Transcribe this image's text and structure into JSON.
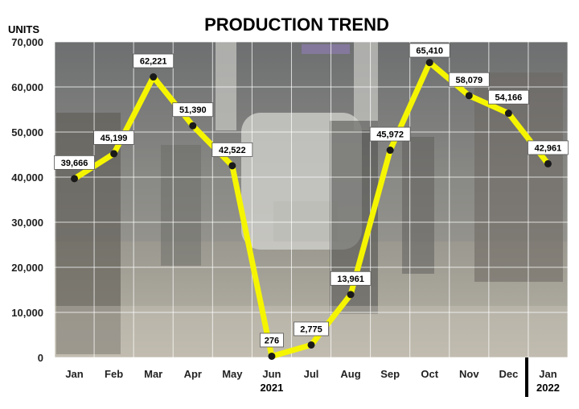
{
  "chart_data": {
    "type": "line",
    "title": "PRODUCTION TREND",
    "ylabel": "UNITS",
    "xlabel": "",
    "categories": [
      "Jan",
      "Feb",
      "Mar",
      "Apr",
      "May",
      "Jun",
      "Jul",
      "Aug",
      "Sep",
      "Oct",
      "Nov",
      "Dec",
      "Jan"
    ],
    "year_labels": [
      {
        "text": "2021",
        "category_index": 5
      },
      {
        "text": "2022",
        "category_index": 12
      }
    ],
    "series": [
      {
        "values": [
          39666,
          45199,
          62221,
          51390,
          42522,
          276,
          2775,
          13961,
          45972,
          65410,
          58079,
          54166,
          42961
        ],
        "labels": [
          "39,666",
          "45,199",
          "62,221",
          "51,390",
          "42,522",
          "276",
          "2,775",
          "13,961",
          "45,972",
          "65,410",
          "58,079",
          "54,166",
          "42,961"
        ]
      }
    ],
    "ylim": [
      0,
      70000
    ],
    "yticks": [
      0,
      10000,
      20000,
      30000,
      40000,
      50000,
      60000,
      70000
    ],
    "ytick_labels": [
      "0",
      "10,000",
      "20,000",
      "30,000",
      "40,000",
      "50,000",
      "60,000",
      "70,000"
    ],
    "grid": true,
    "legend": "none",
    "line_color": "#f5f500",
    "marker_color": "#1a1a1a",
    "background": "factory-assembly-line-photo"
  }
}
